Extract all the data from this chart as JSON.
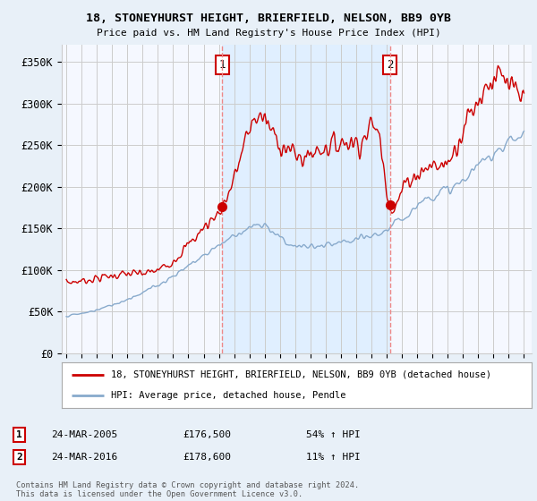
{
  "title1": "18, STONEYHURST HEIGHT, BRIERFIELD, NELSON, BB9 0YB",
  "title2": "Price paid vs. HM Land Registry's House Price Index (HPI)",
  "ylabel_ticks": [
    "£0",
    "£50K",
    "£100K",
    "£150K",
    "£200K",
    "£250K",
    "£300K",
    "£350K"
  ],
  "ylabel_values": [
    0,
    50000,
    100000,
    150000,
    200000,
    250000,
    300000,
    350000
  ],
  "ylim": [
    0,
    370000
  ],
  "xlim_start": 1994.7,
  "xlim_end": 2025.5,
  "vline1_x": 2005.23,
  "vline2_x": 2016.23,
  "marker1_x": 2005.23,
  "marker1_y": 176500,
  "marker2_x": 2016.23,
  "marker2_y": 178600,
  "legend_line1": "18, STONEYHURST HEIGHT, BRIERFIELD, NELSON, BB9 0YB (detached house)",
  "legend_line2": "HPI: Average price, detached house, Pendle",
  "annotation1_date": "24-MAR-2005",
  "annotation1_price": "£176,500",
  "annotation1_hpi": "54% ↑ HPI",
  "annotation2_date": "24-MAR-2016",
  "annotation2_price": "£178,600",
  "annotation2_hpi": "11% ↑ HPI",
  "footnote": "Contains HM Land Registry data © Crown copyright and database right 2024.\nThis data is licensed under the Open Government Licence v3.0.",
  "red_color": "#cc0000",
  "blue_color": "#88aacc",
  "vline_color": "#ee8888",
  "shade_color": "#ddeeff",
  "background_color": "#e8f0f8",
  "plot_bg_color": "#f5f8ff",
  "grid_color": "#cccccc"
}
